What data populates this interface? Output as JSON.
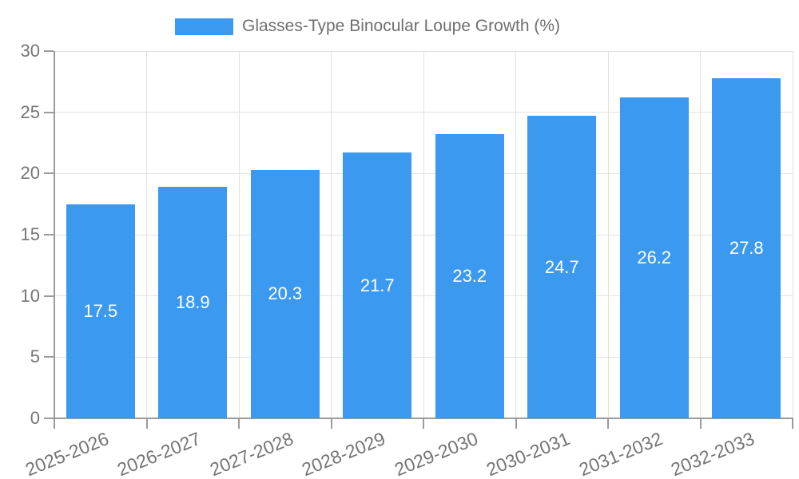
{
  "legend": {
    "label": "Glasses-Type Binocular Loupe Growth (%)"
  },
  "colors": {
    "bar": "#3b99f0",
    "grid": "#e2e2e2",
    "axis": "#9b9b9b",
    "tick_label": "#757575",
    "legend_text": "#6f6f6f",
    "value_label": "#ffffff",
    "background": "#ffffff"
  },
  "chart_data": {
    "type": "bar",
    "title": "",
    "legend_entries": [
      "Glasses-Type Binocular Loupe Growth (%)"
    ],
    "legend_position": "top-center",
    "categories": [
      "2025-2026",
      "2026-2027",
      "2027-2028",
      "2028-2029",
      "2029-2030",
      "2030-2031",
      "2031-2032",
      "2032-2033"
    ],
    "values": [
      17.5,
      18.9,
      20.3,
      21.7,
      23.2,
      24.7,
      26.2,
      27.8
    ],
    "xlabel": "",
    "ylabel": "",
    "ylim": [
      0,
      30
    ],
    "y_ticks": [
      0,
      5,
      10,
      15,
      20,
      25,
      30
    ],
    "grid": true,
    "value_labels": "inside-center-white",
    "x_tick_rotation_deg": -22
  }
}
